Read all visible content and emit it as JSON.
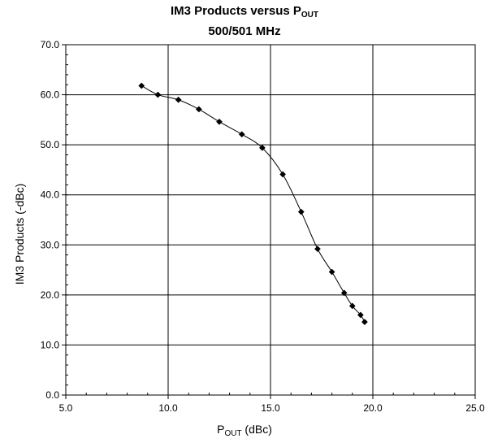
{
  "chart_data": {
    "type": "line",
    "title_main": "IM3 Products versus P",
    "title_sub": "OUT",
    "subtitle": "500/501 MHz",
    "xlabel_main": "P",
    "xlabel_sub": "OUT",
    "xlabel_unit": " (dBc)",
    "ylabel": "IM3 Products (-dBc)",
    "xlim": [
      5.0,
      25.0
    ],
    "ylim": [
      0.0,
      70.0
    ],
    "xticks": [
      "5.0",
      "10.0",
      "15.0",
      "20.0",
      "25.0"
    ],
    "yticks": [
      "0.0",
      "10.0",
      "20.0",
      "30.0",
      "40.0",
      "50.0",
      "60.0",
      "70.0"
    ],
    "grid": true,
    "marker": "diamond",
    "x": [
      8.7,
      9.5,
      10.5,
      11.5,
      12.5,
      13.6,
      14.6,
      15.6,
      16.5,
      17.3,
      18.0,
      18.6,
      19.0,
      19.4,
      19.6
    ],
    "y": [
      61.8,
      60.0,
      59.0,
      57.1,
      54.6,
      52.1,
      49.4,
      44.1,
      36.6,
      29.2,
      24.6,
      20.4,
      17.8,
      16.0,
      14.6
    ]
  }
}
